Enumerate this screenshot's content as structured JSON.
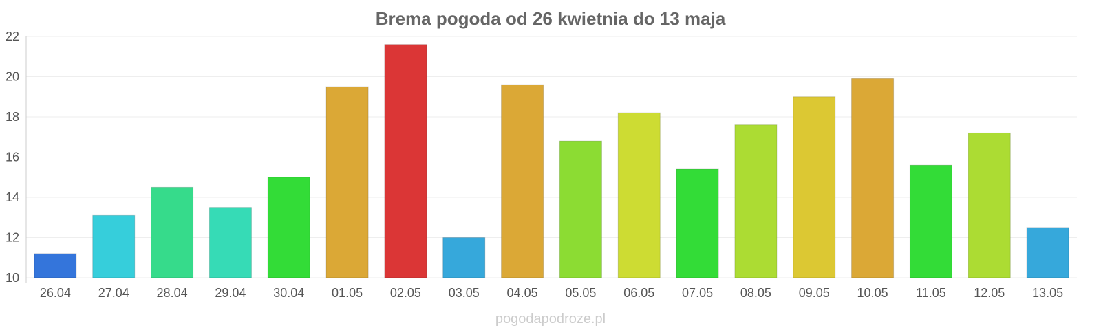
{
  "watermark": "pogodapodroze.pl",
  "chart_data": {
    "type": "bar",
    "title": "Brema pogoda od 26 kwietnia do 13 maja",
    "xlabel": "",
    "ylabel": "",
    "ylim": [
      10,
      22
    ],
    "yticks": [
      10,
      12,
      14,
      16,
      18,
      20,
      22
    ],
    "grid": true,
    "legend": "none",
    "categories": [
      "26.04",
      "27.04",
      "28.04",
      "29.04",
      "30.04",
      "01.05",
      "02.05",
      "03.05",
      "04.05",
      "05.05",
      "06.05",
      "07.05",
      "08.05",
      "09.05",
      "10.05",
      "11.05",
      "12.05",
      "13.05"
    ],
    "values": [
      11.2,
      13.1,
      14.5,
      13.5,
      15.0,
      19.5,
      21.6,
      12.0,
      19.6,
      16.8,
      18.2,
      15.4,
      17.6,
      19.0,
      19.9,
      15.6,
      17.2,
      12.5
    ],
    "colors": [
      "#3475db",
      "#36cedb",
      "#36db8b",
      "#36dbb6",
      "#33dc37",
      "#dba836",
      "#db3636",
      "#36a8db",
      "#dba836",
      "#8cdc33",
      "#cddc33",
      "#33dc37",
      "#acdc33",
      "#dcc833",
      "#dba836",
      "#33dc37",
      "#acdc33",
      "#36a8db"
    ]
  }
}
